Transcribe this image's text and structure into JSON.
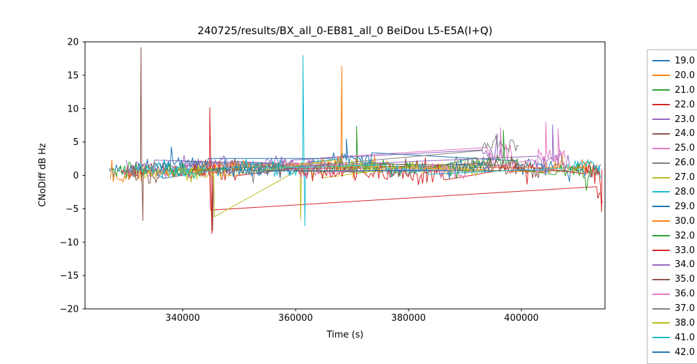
{
  "figure": {
    "background": "#ffffff"
  },
  "chart_data": {
    "type": "line",
    "title": "240725/results/BX_all_0-EB81_all_0 BeiDou L5-E5A(I+Q)",
    "xlabel": "Time (s)",
    "ylabel": "CNoDiff dB Hz",
    "xlim": [
      322700,
      414800
    ],
    "ylim": [
      -20,
      20
    ],
    "xticks": [
      340000,
      360000,
      380000,
      400000
    ],
    "xtick_labels": [
      "340000",
      "360000",
      "380000",
      "400000"
    ],
    "yticks": [
      20,
      15,
      10,
      5,
      0,
      -5,
      -10,
      -15,
      -20
    ],
    "ytick_labels": [
      "20",
      "15",
      "10",
      "5",
      "0",
      "−5",
      "−10",
      "−15",
      "−20"
    ],
    "grid": false,
    "legend_position": "right-outside",
    "sample_step": 250,
    "series": [
      {
        "name": "19.0",
        "color": "#1f77b4",
        "seed": 11,
        "segments": [
          [
            327000,
            336500,
            0.8,
            1.2
          ],
          [
            352000,
            360000,
            1.2,
            1.0
          ],
          [
            408000,
            414000,
            1.0,
            1.0
          ]
        ],
        "spikes": []
      },
      {
        "name": "20.0",
        "color": "#ff7f0e",
        "seed": 22,
        "segments": [
          [
            327200,
            334500,
            0.3,
            1.4
          ],
          [
            341000,
            350500,
            1.0,
            1.1
          ],
          [
            372000,
            377500,
            1.4,
            1.0
          ],
          [
            409500,
            413500,
            1.2,
            1.1
          ]
        ],
        "spikes": []
      },
      {
        "name": "21.0",
        "color": "#2ca02c",
        "seed": 33,
        "segments": [
          [
            327500,
            333800,
            0.5,
            1.3
          ],
          [
            366000,
            372500,
            1.4,
            1.3
          ],
          [
            386000,
            392500,
            0.8,
            1.1
          ]
        ],
        "spikes": [
          [
            370800,
            7.4
          ]
        ]
      },
      {
        "name": "22.0",
        "color": "#d62728",
        "seed": 44,
        "segments": [
          [
            329000,
            344900,
            0.6,
            1.2
          ],
          [
            413300,
            414500,
            -3.0,
            1.2
          ]
        ],
        "spikes": [
          [
            344950,
            -5.2
          ]
        ]
      },
      {
        "name": "23.0",
        "color": "#9467bd",
        "seed": 55,
        "segments": [
          [
            330000,
            335200,
            1.5,
            1.2
          ],
          [
            354000,
            359500,
            2.0,
            1.2
          ],
          [
            393000,
            397200,
            3.3,
            1.5
          ]
        ],
        "spikes": [
          [
            395700,
            6.3
          ]
        ]
      },
      {
        "name": "24.0",
        "color": "#8c564b",
        "seed": 66,
        "segments": [
          [
            330500,
            336000,
            0.5,
            1.4
          ],
          [
            342000,
            352500,
            1.4,
            1.2
          ],
          [
            363000,
            370000,
            1.2,
            1.0
          ],
          [
            397000,
            404500,
            0.5,
            1.2
          ]
        ],
        "spikes": [
          [
            332600,
            19.2
          ],
          [
            332950,
            -6.8
          ],
          [
            345300,
            -8.4
          ]
        ]
      },
      {
        "name": "25.0",
        "color": "#e377c2",
        "seed": 77,
        "segments": [
          [
            335000,
            341500,
            1.0,
            1.2
          ],
          [
            358000,
            364500,
            1.5,
            1.2
          ],
          [
            394000,
            398500,
            2.8,
            1.6
          ]
        ],
        "spikes": [
          [
            396300,
            7.2
          ]
        ]
      },
      {
        "name": "26.0",
        "color": "#7f7f7f",
        "seed": 88,
        "segments": [
          [
            331000,
            340500,
            1.2,
            1.0
          ],
          [
            353000,
            366500,
            1.4,
            0.9
          ],
          [
            388000,
            395500,
            1.8,
            1.2
          ]
        ],
        "spikes": []
      },
      {
        "name": "27.0",
        "color": "#bcbd22",
        "seed": 99,
        "segments": [
          [
            333000,
            345500,
            0.3,
            1.2
          ],
          [
            360800,
            364800,
            0.5,
            1.2
          ],
          [
            379000,
            386500,
            1.0,
            1.0
          ]
        ],
        "spikes": [
          [
            345600,
            -6.2
          ],
          [
            360900,
            -6.6
          ]
        ]
      },
      {
        "name": "28.0",
        "color": "#17becf",
        "seed": 110,
        "segments": [
          [
            331500,
            345200,
            1.0,
            1.1
          ],
          [
            356000,
            362500,
            0.8,
            1.2
          ],
          [
            368000,
            374500,
            1.4,
            1.0
          ]
        ],
        "spikes": [
          [
            361300,
            18.0
          ],
          [
            361650,
            -7.6
          ]
        ]
      },
      {
        "name": "29.0",
        "color": "#1f77b4",
        "seed": 121,
        "segments": [
          [
            336000,
            344500,
            1.8,
            1.0
          ],
          [
            366000,
            373500,
            2.4,
            1.2
          ],
          [
            399000,
            406500,
            1.5,
            1.1
          ]
        ],
        "spikes": [
          [
            369000,
            5.5
          ]
        ]
      },
      {
        "name": "30.0",
        "color": "#ff7f0e",
        "seed": 132,
        "segments": [
          [
            344000,
            352500,
            1.2,
            1.1
          ],
          [
            364000,
            371500,
            1.5,
            1.2
          ],
          [
            404000,
            412500,
            1.3,
            1.2
          ]
        ],
        "spikes": [
          [
            368200,
            16.4
          ]
        ]
      },
      {
        "name": "32.0",
        "color": "#2ca02c",
        "seed": 143,
        "segments": [
          [
            337000,
            343500,
            0.8,
            1.0
          ],
          [
            372000,
            380500,
            1.0,
            1.2
          ],
          [
            392000,
            399500,
            1.9,
            1.4
          ],
          [
            406000,
            413800,
            0.5,
            1.3
          ]
        ],
        "spikes": [
          [
            396800,
            6.8
          ]
        ]
      },
      {
        "name": "33.0",
        "color": "#d62728",
        "seed": 154,
        "segments": [
          [
            341000,
            349500,
            0.5,
            1.4
          ],
          [
            360000,
            371000,
            0.6,
            1.2
          ],
          [
            373000,
            386500,
            0.3,
            1.3
          ],
          [
            396000,
            402500,
            1.0,
            1.0
          ],
          [
            411000,
            414300,
            0.0,
            1.5
          ]
        ],
        "spikes": [
          [
            344800,
            10.2
          ],
          [
            345150,
            -8.8
          ],
          [
            414200,
            -5.5
          ]
        ]
      },
      {
        "name": "34.0",
        "color": "#9467bd",
        "seed": 165,
        "segments": [
          [
            340000,
            348500,
            2.0,
            1.2
          ],
          [
            357000,
            363500,
            1.8,
            1.1
          ],
          [
            403000,
            408500,
            2.4,
            1.4
          ]
        ],
        "spikes": [
          [
            405500,
            7.6
          ]
        ]
      },
      {
        "name": "35.0",
        "color": "#8c564b",
        "seed": 176,
        "segments": [
          [
            350000,
            358500,
            1.0,
            1.0
          ],
          [
            376000,
            383500,
            0.8,
            1.1
          ],
          [
            394000,
            401500,
            1.4,
            1.2
          ]
        ],
        "spikes": []
      },
      {
        "name": "36.0",
        "color": "#e377c2",
        "seed": 187,
        "segments": [
          [
            359000,
            366500,
            1.0,
            1.2
          ],
          [
            384000,
            390500,
            0.5,
            1.3
          ],
          [
            402000,
            407800,
            2.4,
            1.7
          ]
        ],
        "spikes": [
          [
            404300,
            8.0
          ],
          [
            406500,
            7.0
          ]
        ]
      },
      {
        "name": "37.0",
        "color": "#7f7f7f",
        "seed": 198,
        "segments": [
          [
            348000,
            357500,
            1.0,
            1.0
          ],
          [
            393000,
            399500,
            4.5,
            1.2
          ]
        ],
        "spikes": []
      },
      {
        "name": "38.0",
        "color": "#bcbd22",
        "seed": 209,
        "segments": [
          [
            341000,
            347500,
            0.5,
            1.1
          ],
          [
            367000,
            375500,
            1.2,
            1.0
          ],
          [
            385000,
            393500,
            0.8,
            1.2
          ]
        ],
        "spikes": []
      },
      {
        "name": "41.0",
        "color": "#17becf",
        "seed": 220,
        "segments": [
          [
            335000,
            342500,
            0.5,
            1.0
          ],
          [
            350000,
            357500,
            1.5,
            1.1
          ],
          [
            376000,
            383500,
            1.0,
            1.0
          ],
          [
            408000,
            414200,
            1.5,
            1.2
          ]
        ],
        "spikes": []
      },
      {
        "name": "42.0",
        "color": "#1f77b4",
        "seed": 231,
        "segments": [
          [
            346000,
            354500,
            0.8,
            1.0
          ],
          [
            387000,
            394500,
            1.2,
            1.0
          ]
        ],
        "spikes": []
      }
    ]
  }
}
